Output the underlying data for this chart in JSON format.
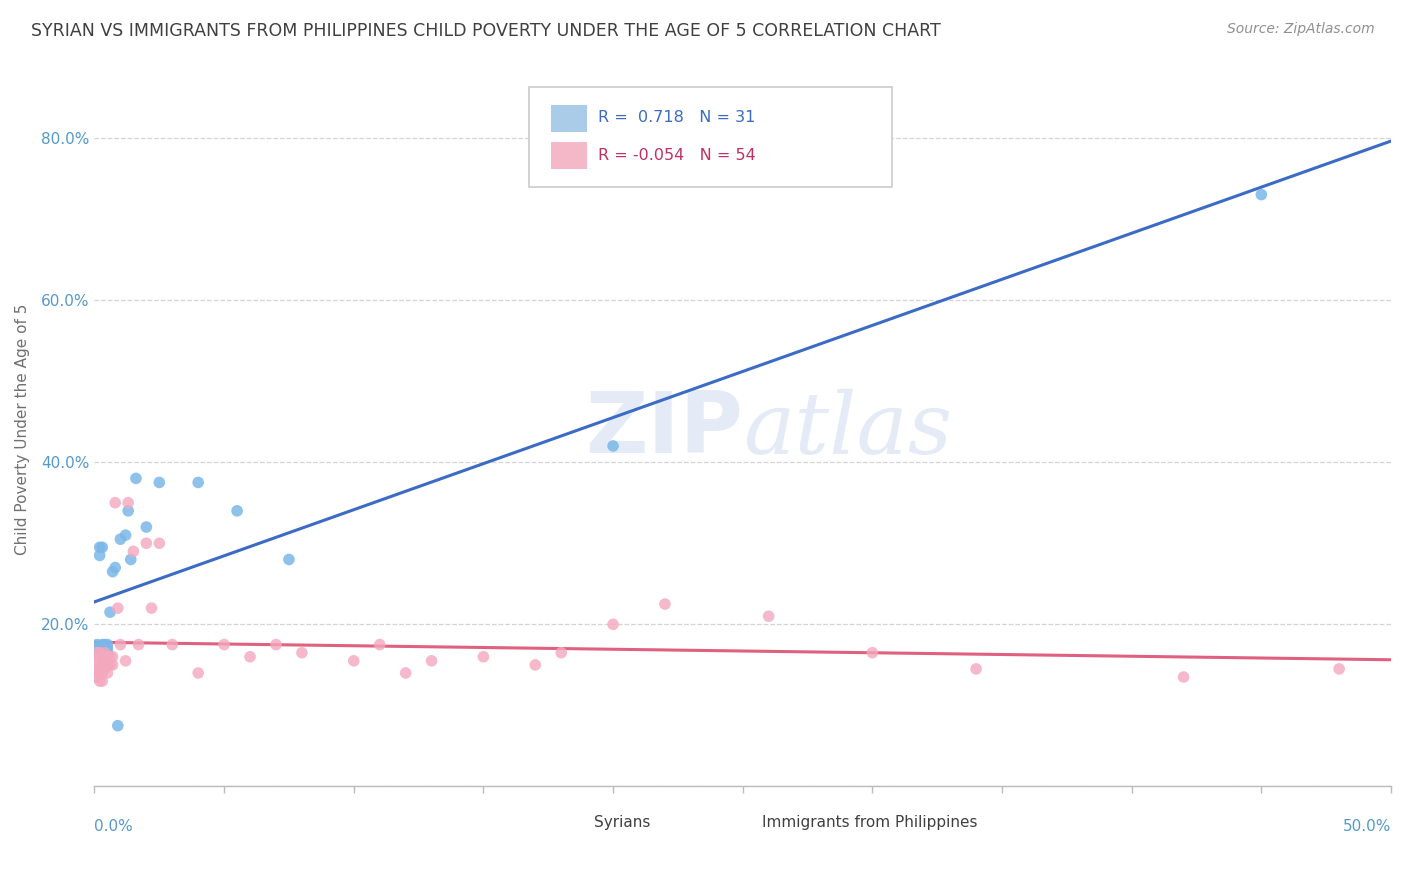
{
  "title": "SYRIAN VS IMMIGRANTS FROM PHILIPPINES CHILD POVERTY UNDER THE AGE OF 5 CORRELATION CHART",
  "source": "Source: ZipAtlas.com",
  "ylabel": "Child Poverty Under the Age of 5",
  "yticks": [
    0.0,
    0.2,
    0.4,
    0.6,
    0.8
  ],
  "ytick_labels": [
    "",
    "20.0%",
    "40.0%",
    "60.0%",
    "80.0%"
  ],
  "xlim": [
    0.0,
    0.5
  ],
  "ylim": [
    0.0,
    0.88
  ],
  "syrians_x": [
    0.001,
    0.001,
    0.001,
    0.002,
    0.002,
    0.002,
    0.003,
    0.003,
    0.003,
    0.003,
    0.004,
    0.004,
    0.005,
    0.005,
    0.005,
    0.006,
    0.007,
    0.008,
    0.009,
    0.01,
    0.012,
    0.013,
    0.014,
    0.016,
    0.02,
    0.025,
    0.04,
    0.055,
    0.075,
    0.2,
    0.45
  ],
  "syrians_y": [
    0.175,
    0.17,
    0.165,
    0.295,
    0.285,
    0.17,
    0.295,
    0.175,
    0.17,
    0.165,
    0.175,
    0.17,
    0.165,
    0.17,
    0.175,
    0.215,
    0.265,
    0.27,
    0.075,
    0.305,
    0.31,
    0.34,
    0.28,
    0.38,
    0.32,
    0.375,
    0.375,
    0.34,
    0.28,
    0.42,
    0.73
  ],
  "philippines_x": [
    0.001,
    0.001,
    0.001,
    0.001,
    0.001,
    0.002,
    0.002,
    0.002,
    0.002,
    0.003,
    0.003,
    0.003,
    0.003,
    0.003,
    0.004,
    0.004,
    0.004,
    0.005,
    0.005,
    0.005,
    0.006,
    0.006,
    0.007,
    0.007,
    0.008,
    0.009,
    0.01,
    0.012,
    0.013,
    0.015,
    0.017,
    0.02,
    0.022,
    0.025,
    0.03,
    0.04,
    0.05,
    0.06,
    0.07,
    0.08,
    0.1,
    0.11,
    0.12,
    0.13,
    0.15,
    0.17,
    0.18,
    0.2,
    0.22,
    0.26,
    0.3,
    0.34,
    0.42,
    0.48
  ],
  "philippines_y": [
    0.165,
    0.155,
    0.145,
    0.14,
    0.135,
    0.165,
    0.155,
    0.145,
    0.13,
    0.16,
    0.15,
    0.145,
    0.14,
    0.13,
    0.165,
    0.155,
    0.145,
    0.16,
    0.15,
    0.14,
    0.16,
    0.15,
    0.16,
    0.15,
    0.35,
    0.22,
    0.175,
    0.155,
    0.35,
    0.29,
    0.175,
    0.3,
    0.22,
    0.3,
    0.175,
    0.14,
    0.175,
    0.16,
    0.175,
    0.165,
    0.155,
    0.175,
    0.14,
    0.155,
    0.16,
    0.15,
    0.165,
    0.2,
    0.225,
    0.21,
    0.165,
    0.145,
    0.135,
    0.145
  ],
  "blue_dot_color": "#7ab8e8",
  "pink_dot_color": "#f4a8be",
  "blue_line_color": "#3b6bc4",
  "pink_line_color": "#e06080",
  "watermark_color": "#d4dff0",
  "grid_color": "#d0d0d0",
  "title_color": "#404040",
  "source_color": "#909090",
  "axis_label_color": "#5599cc",
  "ylabel_color": "#707070",
  "legend_text_color_blue": "#3b6bc4",
  "legend_text_color_pink": "#c03060",
  "blue_box_color": "#aacce8",
  "pink_box_color": "#f4b8c8"
}
